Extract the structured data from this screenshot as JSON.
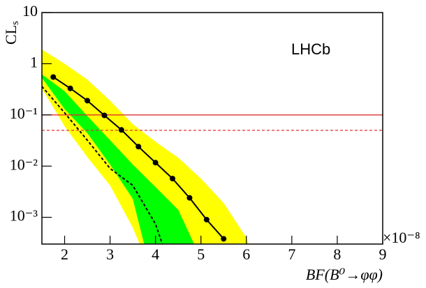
{
  "chart_data": {
    "type": "cls",
    "y_label": {
      "main": "CL",
      "sub": "s"
    },
    "x_label": "BF(B⁰→φφ)",
    "x_multiplier": "×10⁻⁸",
    "annotation": "LHCb",
    "log_y": true,
    "xlim": [
      1.5,
      9
    ],
    "ylim": [
      0.0003,
      10
    ],
    "xticks": [
      2,
      3,
      4,
      5,
      6,
      7,
      8,
      9
    ],
    "yticks": [
      {
        "value": 0.001,
        "label": "10⁻³"
      },
      {
        "value": 0.01,
        "label": "10⁻²"
      },
      {
        "value": 0.1,
        "label": "10⁻¹"
      },
      1,
      10
    ],
    "bands": [
      {
        "color": "#ffff00",
        "upper": {
          "x": [
            1.5,
            2,
            2.5,
            3,
            3.5,
            4,
            4.5,
            5,
            5.5,
            6,
            6.05
          ],
          "values": [
            1.9,
            1,
            0.49,
            0.19,
            0.066,
            0.03,
            0.0146,
            0.0057,
            0.0019,
            0.0004,
            0.0003
          ]
        },
        "lower": {
          "x": [
            1.5,
            2,
            2.5,
            3,
            3.5,
            3.65
          ],
          "values": [
            0.33,
            0.06,
            0.015,
            0.0042,
            0.00063,
            0.0003
          ]
        }
      },
      {
        "color": "#00ff00",
        "upper": {
          "x": [
            1.5,
            2,
            2.5,
            3,
            3.5,
            4,
            4.5,
            4.85
          ],
          "values": [
            0.62,
            0.29,
            0.095,
            0.032,
            0.0107,
            0.0039,
            0.0014,
            0.0003
          ]
        },
        "lower": {
          "x": [
            1.5,
            2,
            2.5,
            3,
            3.5,
            3.75
          ],
          "values": [
            0.53,
            0.13,
            0.044,
            0.0107,
            0.0023,
            0.0003
          ]
        }
      }
    ],
    "series": [
      {
        "kind": "expected",
        "color": "#000000",
        "dashed": true,
        "x": [
          1.5,
          2,
          2.5,
          3,
          3.5,
          4,
          4.15
        ],
        "values": [
          0.36,
          0.11,
          0.032,
          0.009,
          0.0042,
          0.00074,
          0.0003
        ]
      },
      {
        "kind": "observed",
        "color": "#000000",
        "dashed": false,
        "markers": true,
        "x": [
          1.75,
          2.125,
          2.5,
          2.875,
          3.25,
          3.625,
          4,
          4.375,
          4.75,
          5.125,
          5.5
        ],
        "values": [
          0.55,
          0.33,
          0.19,
          0.098,
          0.051,
          0.024,
          0.0117,
          0.0057,
          0.0024,
          0.0009,
          0.00038
        ]
      }
    ],
    "reference_lines": [
      {
        "value": 0.1,
        "color": "#e03030",
        "dashed": false
      },
      {
        "value": 0.05,
        "color": "#e03030",
        "dashed": true
      }
    ]
  }
}
